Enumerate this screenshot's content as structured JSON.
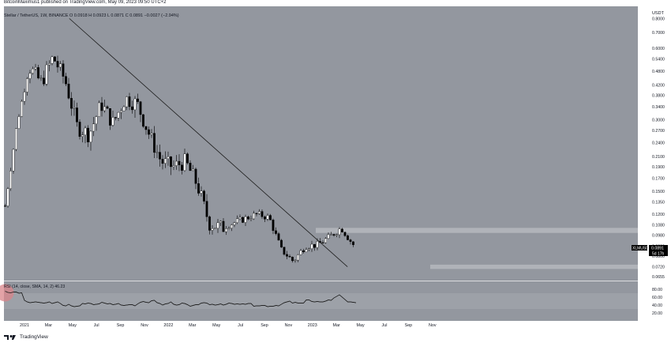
{
  "header": {
    "published_by": "BitcoinMaximus1 published on TradingView.com, May 09, 2023 09:50 UTC+2"
  },
  "legend": {
    "symbol": "Stellar / TetherUS, 1W, BINANCE",
    "ohlc": "O 0.0918  H 0.0923  L 0.0871  C 0.0891  −0.0027 (−2.94%)"
  },
  "price_axis": {
    "unit_label": "USDT",
    "ticks": [
      "0.8000",
      "0.7000",
      "0.6000",
      "0.5400",
      "0.4800",
      "0.4200",
      "0.3800",
      "0.3400",
      "0.3000",
      "0.2700",
      "0.2400",
      "0.2100",
      "0.1900",
      "0.1700",
      "0.1500",
      "0.1350",
      "0.1200",
      "0.1080",
      "0.0980",
      "0.0880",
      "0.0800",
      "0.0720",
      "0.0655"
    ]
  },
  "price_label": {
    "symbol": "XLMUSDT",
    "value": "0.0891",
    "countdown": "5d 17h"
  },
  "rsi_panel": {
    "legend": "RSI (14, close, SMA, 14, 2)  46.23",
    "ticks": [
      "80.00",
      "60.00",
      "40.00",
      "20.00"
    ]
  },
  "time_axis": {
    "labels": [
      "2021",
      "Mar",
      "May",
      "Jul",
      "Sep",
      "Nov",
      "2022",
      "Mar",
      "May",
      "Jul",
      "Sep",
      "Nov",
      "2023",
      "Mar",
      "May",
      "Jul",
      "Sep",
      "Nov"
    ]
  },
  "footer": {
    "brand": "TradingView"
  },
  "colors": {
    "background": "#93979f",
    "rsi_band": "#9da1a8",
    "zone": "#b9bcc1",
    "candle_up": "#ffffff",
    "candle_down": "#000000",
    "line": "#1e1e1e",
    "rsi_highlight": "#d9848a"
  },
  "chart_data": {
    "type": "candlestick",
    "title": "Stellar / TetherUS, 1W, BINANCE",
    "ylabel": "USDT",
    "y_scale": "log",
    "ylim": [
      0.063,
      0.9
    ],
    "x": [
      "2020-12",
      "2021-01",
      "2021-02",
      "2021-03",
      "2021-04",
      "2021-05",
      "2021-06",
      "2021-07",
      "2021-08",
      "2021-09",
      "2021-10",
      "2021-11",
      "2021-12",
      "2022-01",
      "2022-02",
      "2022-03",
      "2022-04",
      "2022-05",
      "2022-06",
      "2022-07",
      "2022-08",
      "2022-09",
      "2022-10",
      "2022-11",
      "2022-12",
      "2023-01",
      "2023-02",
      "2023-03",
      "2023-04",
      "2023-05"
    ],
    "close": [
      0.13,
      0.29,
      0.5,
      0.43,
      0.55,
      0.44,
      0.28,
      0.26,
      0.35,
      0.29,
      0.37,
      0.35,
      0.26,
      0.2,
      0.19,
      0.2,
      0.16,
      0.11,
      0.105,
      0.11,
      0.115,
      0.12,
      0.116,
      0.085,
      0.076,
      0.088,
      0.089,
      0.096,
      0.105,
      0.0891
    ],
    "last": {
      "open": 0.0918,
      "high": 0.0923,
      "low": 0.0871,
      "close": 0.0891,
      "change": -0.0027,
      "change_pct": -2.94
    },
    "trendline": {
      "from": [
        "2021-05",
        0.8
      ],
      "to": [
        "2023-03",
        0.072
      ]
    },
    "zones": [
      {
        "low": 0.1,
        "high": 0.105
      },
      {
        "low": 0.0705,
        "high": 0.0735
      }
    ],
    "rsi": {
      "ylim": [
        0,
        100
      ],
      "band": [
        30,
        70
      ],
      "values": [
        75,
        72,
        71,
        73,
        73,
        70,
        71,
        52,
        48,
        46,
        47,
        48,
        47,
        46,
        45,
        46,
        48,
        44,
        46,
        48,
        44,
        39,
        38,
        42,
        38,
        36,
        37,
        38,
        44,
        43,
        45,
        44,
        41,
        42,
        43,
        47,
        45,
        43,
        44,
        41,
        42,
        44,
        40,
        39,
        40,
        41,
        41,
        38,
        43,
        47,
        49,
        47,
        46,
        51,
        52,
        46,
        44,
        40,
        43,
        44,
        48,
        42,
        40,
        41,
        45,
        44,
        41,
        37,
        39,
        41,
        41,
        45,
        46,
        45,
        41,
        42,
        40,
        41,
        43,
        40,
        42,
        45,
        44,
        42,
        43,
        42,
        43,
        42,
        44,
        44,
        37,
        38,
        38,
        39,
        39,
        36,
        37,
        37,
        39,
        38,
        42,
        46,
        48,
        50,
        45,
        47,
        45,
        45,
        45,
        53,
        53,
        49,
        48,
        49,
        48,
        48,
        50,
        53,
        52,
        58,
        62,
        66,
        60,
        54,
        48,
        48,
        47,
        46
      ],
      "last": 46.23
    }
  }
}
